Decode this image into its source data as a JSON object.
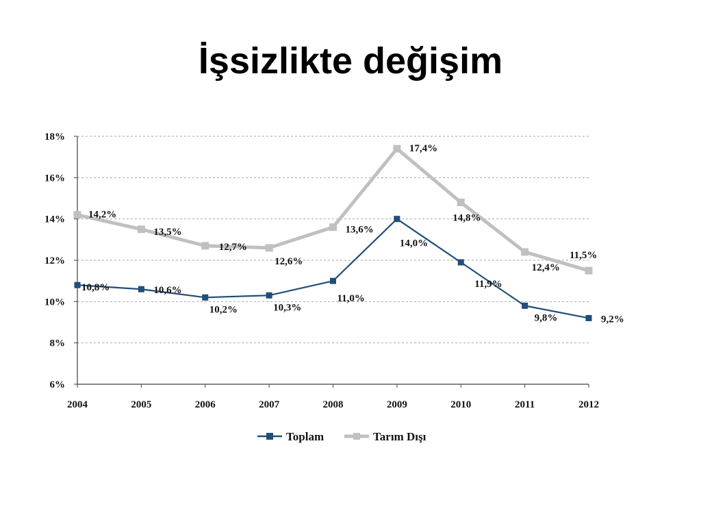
{
  "slide": {
    "title": "İşsizlikte değişim"
  },
  "chart_data": {
    "type": "line",
    "categories": [
      "2004",
      "2005",
      "2006",
      "2007",
      "2008",
      "2009",
      "2010",
      "2011",
      "2012"
    ],
    "y_ticks": [
      "6%",
      "8%",
      "10%",
      "12%",
      "14%",
      "16%",
      "18%"
    ],
    "ylim": [
      6,
      18
    ],
    "y_step": 2,
    "grid": true,
    "legend_position": "bottom",
    "series": [
      {
        "name": "Toplam",
        "color": "#1f4e79",
        "marker": "square",
        "values": [
          10.8,
          10.6,
          10.2,
          10.3,
          11.0,
          14.0,
          11.9,
          9.8,
          9.2
        ],
        "labels": [
          "10,8%",
          "10,6%",
          "10,2%",
          "10,3%",
          "11,0%",
          "14,0%",
          "11,9%",
          "9,8%",
          "9,2%"
        ]
      },
      {
        "name": "Tarım Dışı",
        "color": "#c0c0c0",
        "marker": "square",
        "values": [
          14.2,
          13.5,
          12.7,
          12.6,
          13.6,
          17.4,
          14.8,
          12.4,
          11.5
        ],
        "labels": [
          "14,2%",
          "13,5%",
          "12,7%",
          "12,6%",
          "13,6%",
          "17,4%",
          "14,8%",
          "12,4%",
          "11,5%"
        ]
      }
    ]
  }
}
